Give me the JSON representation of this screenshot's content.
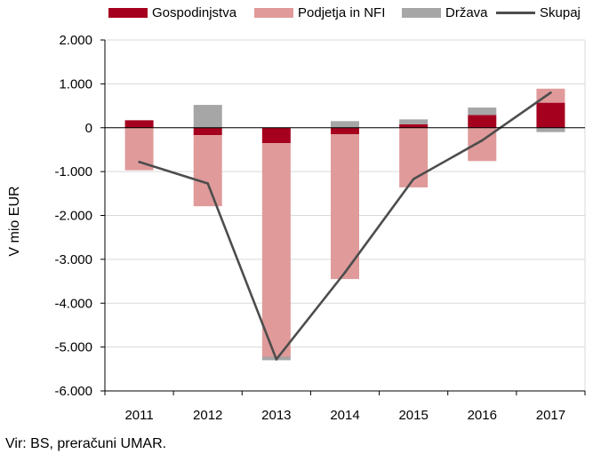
{
  "chart_data": {
    "type": "bar",
    "stacked": true,
    "categories": [
      "2011",
      "2012",
      "2013",
      "2014",
      "2015",
      "2016",
      "2017"
    ],
    "series": [
      {
        "name": "Gospodinjstva",
        "kind": "bar",
        "color": "#a5001e",
        "values": [
          170,
          -170,
          -350,
          -150,
          80,
          290,
          570
        ]
      },
      {
        "name": "Podjetja in NFI",
        "kind": "bar",
        "color": "#e09a9a",
        "values": [
          -970,
          -1620,
          -4870,
          -3300,
          -1360,
          -760,
          320
        ]
      },
      {
        "name": "Država",
        "kind": "bar",
        "color": "#a6a6a6",
        "values": [
          0,
          520,
          -80,
          150,
          110,
          170,
          -100
        ]
      },
      {
        "name": "Skupaj",
        "kind": "line",
        "color": "#4d4d4d",
        "values": [
          -780,
          -1270,
          -5280,
          -3300,
          -1170,
          -290,
          800
        ]
      }
    ],
    "ylabel": "V mio EUR",
    "ylim": [
      -6000,
      2000
    ],
    "yticks": [
      2000,
      1000,
      0,
      -1000,
      -2000,
      -3000,
      -4000,
      -5000,
      -6000
    ],
    "ytick_labels": [
      "2.000",
      "1.000",
      "0",
      "-1.000",
      "-2.000",
      "-3.000",
      "-4.000",
      "-5.000",
      "-6.000"
    ],
    "grid": true,
    "legend": "top"
  },
  "source_note": "Vir: BS, preračuni UMAR."
}
